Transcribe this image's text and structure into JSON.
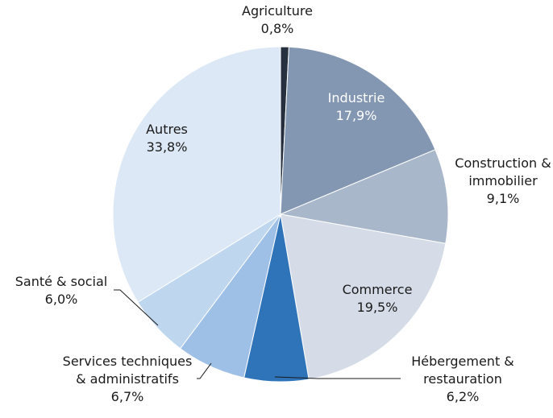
{
  "chart_data": {
    "type": "pie",
    "title": "",
    "start_angle_deg": 0,
    "direction": "clockwise",
    "slices": [
      {
        "label_lines": [
          "Agriculture"
        ],
        "value_label": "0,8%",
        "value": 0.8,
        "color": "#26303f"
      },
      {
        "label_lines": [
          "Industrie"
        ],
        "value_label": "17,9%",
        "value": 17.9,
        "color": "#8397b2"
      },
      {
        "label_lines": [
          "Construction &",
          "immobilier"
        ],
        "value_label": "9,1%",
        "value": 9.1,
        "color": "#a9b7ca"
      },
      {
        "label_lines": [
          "Commerce"
        ],
        "value_label": "19,5%",
        "value": 19.5,
        "color": "#d5dce8"
      },
      {
        "label_lines": [
          "Hébergement &",
          "restauration"
        ],
        "value_label": "6,2%",
        "value": 6.2,
        "color": "#2f73b8"
      },
      {
        "label_lines": [
          "Services techniques",
          "& administratifs"
        ],
        "value_label": "6,7%",
        "value": 6.7,
        "color": "#9fc0e6"
      },
      {
        "label_lines": [
          "Santé & social"
        ],
        "value_label": "6,0%",
        "value": 6.0,
        "color": "#bfd6ef"
      },
      {
        "label_lines": [
          "Autres"
        ],
        "value_label": "33,8%",
        "value": 33.8,
        "color": "#dce8f5"
      }
    ]
  }
}
